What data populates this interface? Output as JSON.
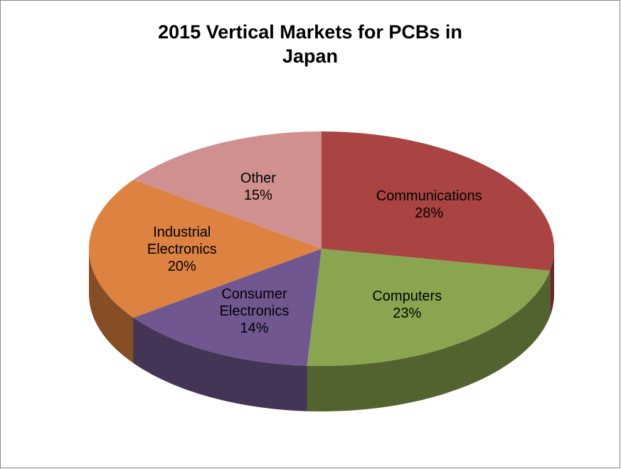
{
  "chart_data": {
    "type": "pie",
    "title": "2015 Vertical Markets for PCBs in Japan",
    "categories": [
      "Communications",
      "Computers",
      "Consumer Electronics",
      "Industrial Electronics",
      "Other"
    ],
    "values": [
      28,
      23,
      14,
      20,
      15
    ],
    "value_labels": [
      "28%",
      "23%",
      "14%",
      "20%",
      "15%"
    ],
    "colors": [
      "#a94442",
      "#8aa550",
      "#715790",
      "#dd8240",
      "#d09090"
    ]
  }
}
